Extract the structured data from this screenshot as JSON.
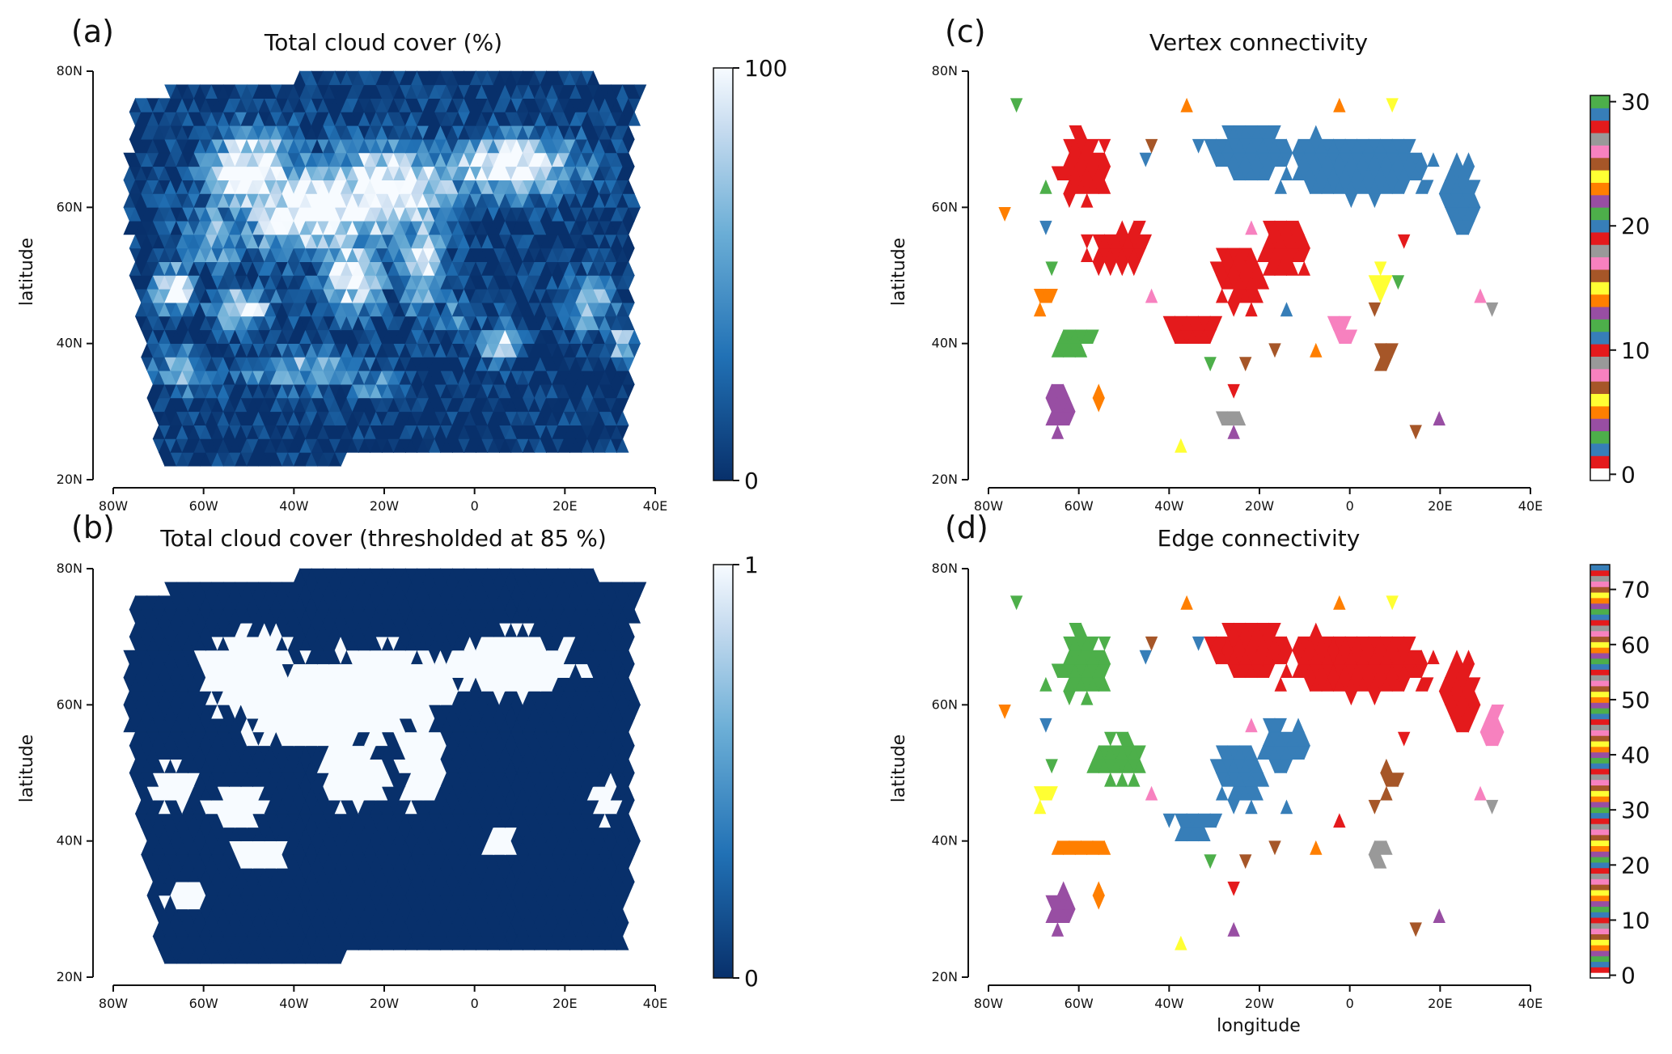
{
  "chart_data": [
    {
      "panel_label": "(a)",
      "type": "heatmap",
      "title": "Total cloud cover (%)",
      "ylabel": "latitude",
      "xlabel": "",
      "xlim": [
        -80,
        40
      ],
      "ylim": [
        20,
        80
      ],
      "x_ticks": [
        "80W",
        "60W",
        "40W",
        "20W",
        "0",
        "20E",
        "40E"
      ],
      "y_ticks": [
        "20N",
        "40N",
        "60N",
        "80N"
      ],
      "colorbar": {
        "min": 0,
        "max": 100,
        "ticks": [
          "0",
          "100"
        ],
        "colors": [
          "#08306b",
          "#f7fbff"
        ]
      },
      "blobs": [
        [
          -35,
          60,
          26,
          9,
          0.95
        ],
        [
          -50,
          65,
          14,
          8,
          0.95
        ],
        [
          -20,
          63,
          22,
          8,
          0.95
        ],
        [
          8,
          66,
          20,
          6,
          0.9
        ],
        [
          -28,
          50,
          9,
          7,
          0.9
        ],
        [
          -12,
          52,
          6,
          9,
          0.85
        ],
        [
          -67,
          48,
          6,
          4,
          0.95
        ],
        [
          -52,
          45,
          9,
          4,
          0.8
        ],
        [
          -40,
          36,
          18,
          4,
          0.55
        ],
        [
          -65,
          36,
          9,
          4,
          0.6
        ],
        [
          -22,
          34,
          7,
          3,
          0.5
        ],
        [
          5,
          40,
          6,
          4,
          0.7
        ],
        [
          25,
          46,
          7,
          6,
          0.6
        ],
        [
          32,
          40,
          3,
          3,
          0.8
        ],
        [
          -5,
          44,
          5,
          4,
          0.4
        ],
        [
          -58,
          56,
          10,
          6,
          0.55
        ]
      ]
    },
    {
      "panel_label": "(b)",
      "type": "heatmap",
      "title": "Total cloud cover (thresholded at 85 %)",
      "ylabel": "latitude",
      "xlabel": "",
      "xlim": [
        -80,
        40
      ],
      "ylim": [
        20,
        80
      ],
      "x_ticks": [
        "80W",
        "60W",
        "40W",
        "20W",
        "0",
        "20E",
        "40E"
      ],
      "y_ticks": [
        "20N",
        "40N",
        "60N",
        "80N"
      ],
      "colorbar": {
        "min": 0,
        "max": 1,
        "ticks": [
          "0",
          "1"
        ],
        "colors": [
          "#08306b",
          "#f7fbff"
        ]
      },
      "blobs": [
        [
          -35,
          60,
          26,
          9,
          1
        ],
        [
          -50,
          65,
          14,
          8,
          1
        ],
        [
          -20,
          63,
          22,
          8,
          1
        ],
        [
          8,
          66,
          20,
          6,
          1
        ],
        [
          -28,
          50,
          9,
          7,
          1
        ],
        [
          -12,
          52,
          6,
          9,
          1
        ],
        [
          -67,
          48,
          6,
          4,
          1
        ],
        [
          -52,
          45,
          9,
          4,
          1
        ],
        [
          -48,
          38,
          8,
          3,
          1
        ],
        [
          -65,
          32,
          6,
          3,
          1
        ],
        [
          5,
          40,
          4,
          3,
          1
        ],
        [
          28,
          46,
          4,
          4,
          1
        ]
      ]
    },
    {
      "panel_label": "(c)",
      "type": "heatmap",
      "title": "Vertex connectivity",
      "ylabel": "latitude",
      "xlabel": "",
      "xlim": [
        -80,
        40
      ],
      "ylim": [
        20,
        80
      ],
      "x_ticks": [
        "80W",
        "60W",
        "40W",
        "20W",
        "0",
        "20E",
        "40E"
      ],
      "y_ticks": [
        "20N",
        "40N",
        "60N",
        "80N"
      ],
      "colorbar": {
        "min": 0,
        "max": 30,
        "ticks": [
          "0",
          "10",
          "20",
          "30"
        ],
        "colors": [
          "#e41a1c",
          "#377eb8",
          "#4daf4a",
          "#984ea3",
          "#ff7f00",
          "#ffff33",
          "#a65628",
          "#f781bf",
          "#999999"
        ]
      },
      "regions": [
        {
          "color": "#377eb8",
          "blobs": [
            [
              0,
              66,
              26,
              7
            ],
            [
              -22,
              68,
              14,
              6
            ],
            [
              24,
              62,
              6,
              9
            ]
          ]
        },
        {
          "color": "#e41a1c",
          "blobs": [
            [
              -60,
              66,
              8,
              8
            ],
            [
              -52,
              54,
              10,
              5
            ],
            [
              -25,
              50,
              8,
              7
            ],
            [
              -15,
              54,
              8,
              6
            ],
            [
              -35,
              42,
              8,
              4
            ]
          ]
        },
        {
          "color": "#ff7f00",
          "blobs": [
            [
              -68,
              47,
              3.5,
              3
            ]
          ]
        },
        {
          "color": "#4daf4a",
          "blobs": [
            [
              -62,
              40,
              7,
              2.5
            ]
          ]
        },
        {
          "color": "#984ea3",
          "blobs": [
            [
              -65,
              31,
              5,
              4
            ]
          ]
        },
        {
          "color": "#ffff33",
          "blobs": [
            [
              6,
              49,
              3,
              3
            ]
          ]
        },
        {
          "color": "#f781bf",
          "blobs": [
            [
              -2,
              42,
              3.5,
              2.5
            ]
          ]
        },
        {
          "color": "#a65628",
          "blobs": [
            [
              7,
              38,
              3.5,
              2.5
            ]
          ]
        },
        {
          "color": "#999999",
          "blobs": [
            [
              -27,
              29,
              3,
              1.2
            ]
          ]
        }
      ]
    },
    {
      "panel_label": "(d)",
      "type": "heatmap",
      "title": "Edge connectivity",
      "ylabel": "latitude",
      "xlabel": "longitude",
      "xlim": [
        -80,
        40
      ],
      "ylim": [
        20,
        80
      ],
      "x_ticks": [
        "80W",
        "60W",
        "40W",
        "20W",
        "0",
        "20E",
        "40E"
      ],
      "y_ticks": [
        "20N",
        "40N",
        "60N",
        "80N"
      ],
      "colorbar": {
        "min": 0,
        "max": 74,
        "ticks": [
          "0",
          "10",
          "20",
          "30",
          "40",
          "50",
          "60",
          "70"
        ],
        "colors": [
          "#e41a1c",
          "#377eb8",
          "#4daf4a",
          "#984ea3",
          "#ff7f00",
          "#ffff33",
          "#a65628",
          "#f781bf",
          "#999999"
        ]
      },
      "regions": [
        {
          "color": "#e41a1c",
          "blobs": [
            [
              0,
              66,
              26,
              7
            ],
            [
              -22,
              68,
              14,
              6
            ],
            [
              24,
              62,
              6,
              9
            ]
          ]
        },
        {
          "color": "#4daf4a",
          "blobs": [
            [
              -60,
              66,
              8,
              8
            ],
            [
              -52,
              52,
              8,
              5
            ],
            [
              -28,
              28,
              3,
              1
            ]
          ]
        },
        {
          "color": "#377eb8",
          "blobs": [
            [
              -25,
              50,
              8,
              7
            ],
            [
              -15,
              54,
              8,
              5
            ],
            [
              -35,
              42,
              7,
              4
            ]
          ]
        },
        {
          "color": "#ffff33",
          "blobs": [
            [
              -68,
              47,
              3.5,
              3
            ]
          ]
        },
        {
          "color": "#ff7f00",
          "blobs": [
            [
              -60,
              39,
              8,
              2.5
            ]
          ]
        },
        {
          "color": "#984ea3",
          "blobs": [
            [
              -65,
              30,
              5,
              4
            ]
          ]
        },
        {
          "color": "#a65628",
          "blobs": [
            [
              8,
              49,
              3,
              3
            ]
          ]
        },
        {
          "color": "#f781bf",
          "blobs": [
            [
              31,
              57,
              3,
              4
            ]
          ]
        },
        {
          "color": "#999999",
          "blobs": [
            [
              6,
              38,
              3,
              2
            ]
          ]
        },
        {
          "color": "#e41a1c",
          "blobs": [
            [
              -3,
              42,
              3,
              1.5
            ]
          ]
        }
      ]
    }
  ]
}
